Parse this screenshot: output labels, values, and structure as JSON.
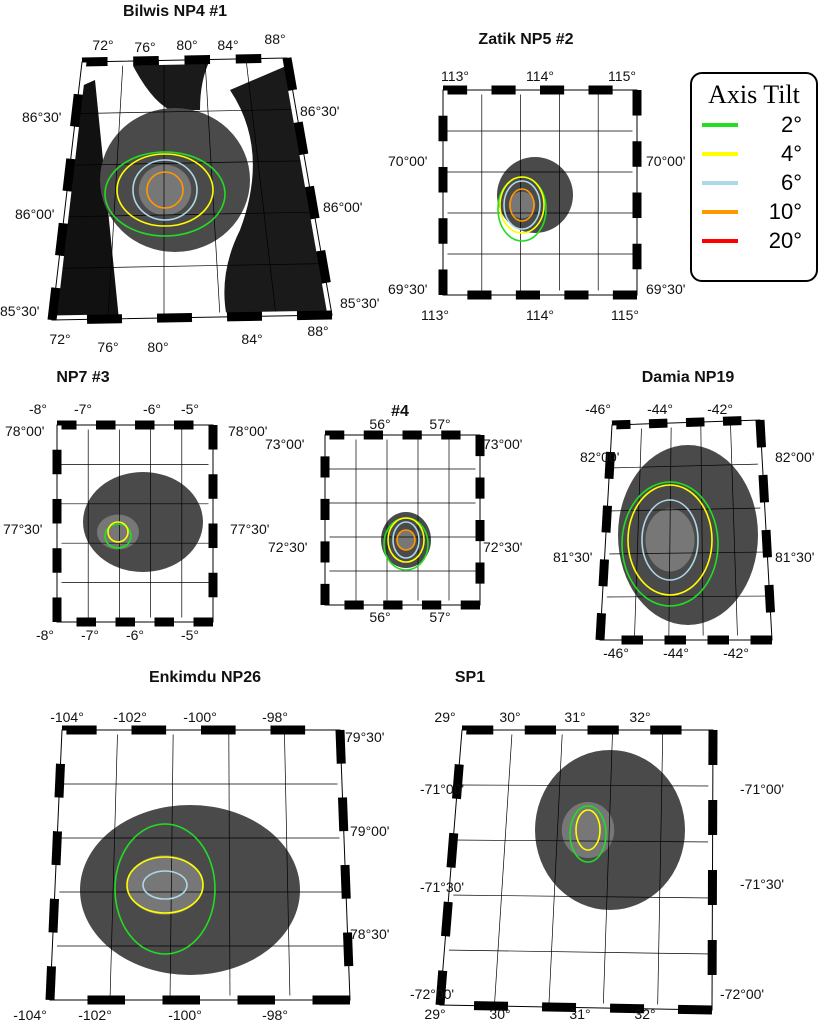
{
  "legend": {
    "title": "Axis Tilt",
    "items": [
      {
        "label": "2°",
        "color": "#22dd22"
      },
      {
        "label": "4°",
        "color": "#ffff00"
      },
      {
        "label": "6°",
        "color": "#add8e6"
      },
      {
        "label": "10°",
        "color": "#ff9900"
      },
      {
        "label": "20°",
        "color": "#ff0000"
      }
    ]
  },
  "panels": [
    {
      "title": "Bilwis NP4 #1",
      "top_labels": [
        "72°",
        "76°",
        "80°",
        "84°",
        "88°"
      ],
      "bottom_labels": [
        "72°",
        "76°",
        "80°",
        "84°",
        "88°"
      ],
      "left_labels": [
        "86°30'",
        "86°00'",
        "85°30'"
      ],
      "right_labels": [
        "86°30'",
        "86°00'",
        "85°30'"
      ],
      "contours": [
        "2°",
        "4°",
        "6°",
        "10°"
      ]
    },
    {
      "title": "Zatik NP5 #2",
      "top_labels": [
        "113°",
        "114°",
        "115°"
      ],
      "bottom_labels": [
        "113°",
        "114°",
        "115°"
      ],
      "left_labels": [
        "70°00'",
        "69°30'"
      ],
      "right_labels": [
        "70°00'",
        "69°30'"
      ],
      "contours": [
        "2°",
        "4°",
        "6°",
        "10°"
      ]
    },
    {
      "title": "NP7 #3",
      "top_labels": [
        "-8°",
        "-7°",
        "-6°",
        "-5°"
      ],
      "bottom_labels": [
        "-8°",
        "-7°",
        "-6°",
        "-5°"
      ],
      "left_labels": [
        "78°00'",
        "77°30'"
      ],
      "right_labels": [
        "78°00'",
        "77°30'"
      ],
      "contours": [
        "2°",
        "4°"
      ]
    },
    {
      "title": "#4",
      "top_labels": [
        "56°",
        "57°"
      ],
      "bottom_labels": [
        "56°",
        "57°"
      ],
      "left_labels": [
        "73°00'",
        "72°30'"
      ],
      "right_labels": [
        "73°00'",
        "72°30'"
      ],
      "contours": [
        "2°",
        "4°",
        "6°",
        "10°"
      ]
    },
    {
      "title": "Damia NP19",
      "top_labels": [
        "-46°",
        "-44°",
        "-42°"
      ],
      "bottom_labels": [
        "-46°",
        "-44°",
        "-42°"
      ],
      "left_labels": [
        "82°00'",
        "81°30'"
      ],
      "right_labels": [
        "82°00'",
        "81°30'"
      ],
      "contours": [
        "2°",
        "4°",
        "6°"
      ]
    },
    {
      "title": "Enkimdu NP26",
      "top_labels": [
        "-104°",
        "-102°",
        "-100°",
        "-98°"
      ],
      "bottom_labels": [
        "-104°",
        "-102°",
        "-100°",
        "-98°"
      ],
      "left_labels": [],
      "right_labels": [
        "79°30'",
        "79°00'",
        "78°30'"
      ],
      "contours": [
        "2°",
        "4°",
        "6°"
      ]
    },
    {
      "title": "SP1",
      "top_labels": [
        "29°",
        "30°",
        "31°",
        "32°"
      ],
      "bottom_labels": [
        "29°",
        "30°",
        "31°",
        "32°"
      ],
      "left_labels": [
        "-71°00'",
        "-71°30'",
        "-72°00'"
      ],
      "right_labels": [
        "-71°00'",
        "-71°30'",
        "-72°00'"
      ],
      "contours": [
        "2°",
        "4°"
      ]
    }
  ]
}
